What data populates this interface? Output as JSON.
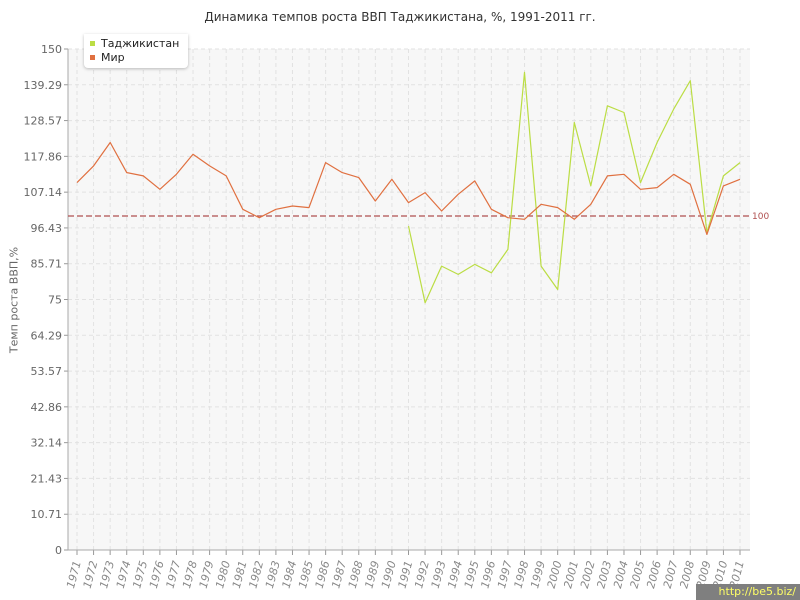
{
  "chart_data": {
    "type": "line",
    "title": "Динамика темпов роста ВВП Таджикистана, %, 1991-2011 гг.",
    "ylabel": "Темп роста ВВП,%",
    "xlabel": "",
    "ylim": [
      0,
      150
    ],
    "yticks": [
      "0",
      "10.71",
      "21.43",
      "32.14",
      "42.86",
      "53.57",
      "64.29",
      "75",
      "85.71",
      "96.43",
      "107.14",
      "117.86",
      "128.57",
      "139.29",
      "150"
    ],
    "x": [
      "1971",
      "1972",
      "1973",
      "1974",
      "1975",
      "1976",
      "1977",
      "1978",
      "1979",
      "1980",
      "1981",
      "1982",
      "1983",
      "1984",
      "1985",
      "1986",
      "1987",
      "1988",
      "1989",
      "1990",
      "1991",
      "1992",
      "1993",
      "1994",
      "1995",
      "1996",
      "1997",
      "1998",
      "1999",
      "2000",
      "2001",
      "2002",
      "2003",
      "2004",
      "2005",
      "2006",
      "2007",
      "2008",
      "2009",
      "2010",
      "2011"
    ],
    "series": [
      {
        "name": "Таджикистан",
        "color": "#bbdd44",
        "values": [
          null,
          null,
          null,
          null,
          null,
          null,
          null,
          null,
          null,
          null,
          null,
          null,
          null,
          null,
          null,
          null,
          null,
          null,
          null,
          null,
          97,
          74,
          85,
          82.5,
          85.5,
          83,
          90,
          143,
          85,
          78,
          128,
          109,
          133,
          131,
          110,
          122,
          132,
          140.5,
          95,
          112,
          116
        ]
      },
      {
        "name": "Мир",
        "color": "#e07040",
        "values": [
          110,
          115,
          122,
          113,
          112,
          108,
          112.5,
          118.5,
          115,
          112,
          102,
          99.5,
          102,
          103,
          102.5,
          116,
          113,
          111.5,
          104.5,
          111,
          104,
          107,
          101.5,
          106.5,
          110.5,
          102,
          99.5,
          99,
          103.5,
          102.5,
          99,
          103.5,
          112,
          112.5,
          108,
          108.5,
          112.5,
          109.5,
          94.5,
          109,
          111
        ]
      }
    ],
    "reference_line": {
      "value": 100,
      "label": "100",
      "color": "#b05050"
    },
    "legend": "top-left",
    "grid": true
  },
  "watermark": "http://be5.biz/"
}
